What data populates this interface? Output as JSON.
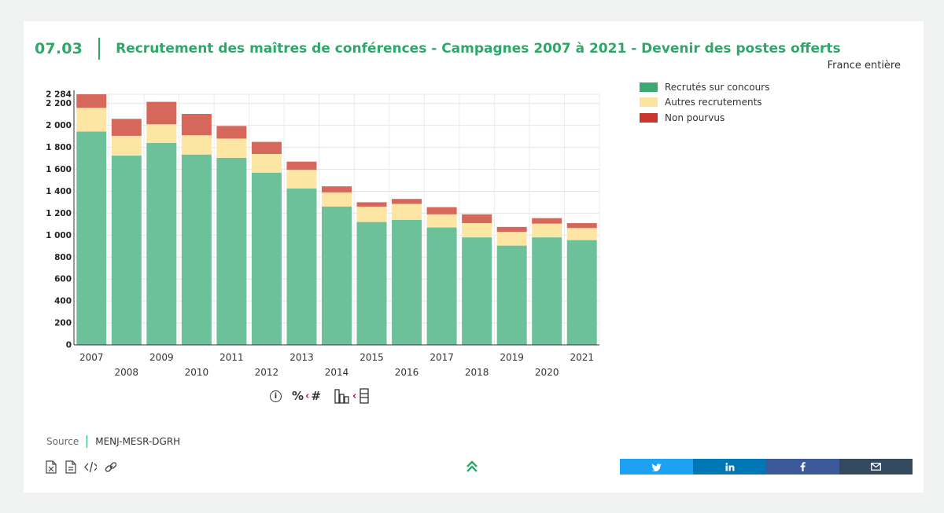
{
  "header": {
    "code": "07.03",
    "title": "Recrutement des maîtres de conférences - Campagnes 2007 à 2021 - Devenir des postes offerts",
    "scope": "France entière"
  },
  "legend": {
    "items": [
      {
        "label": "Recrutés sur concours",
        "color": "#3aaa72"
      },
      {
        "label": "Autres recrutements",
        "color": "#fbe3a0"
      },
      {
        "label": "Non pourvus",
        "color": "#c8382e"
      }
    ]
  },
  "chart_data": {
    "type": "bar",
    "stacked": true,
    "categories": [
      "2007",
      "2008",
      "2009",
      "2010",
      "2011",
      "2012",
      "2013",
      "2014",
      "2015",
      "2016",
      "2017",
      "2018",
      "2019",
      "2020",
      "2021"
    ],
    "series": [
      {
        "name": "Recrutés sur concours",
        "color": "#6cc19a",
        "values": [
          1945,
          1725,
          1840,
          1735,
          1705,
          1570,
          1425,
          1260,
          1120,
          1140,
          1070,
          980,
          905,
          980,
          955
        ]
      },
      {
        "name": "Autres recrutements",
        "color": "#fde5a3",
        "values": [
          215,
          180,
          170,
          175,
          175,
          170,
          170,
          130,
          140,
          145,
          120,
          130,
          125,
          125,
          110
        ]
      },
      {
        "name": "Non pourvus",
        "color": "#d6675b",
        "values": [
          124,
          155,
          205,
          195,
          115,
          110,
          75,
          55,
          40,
          45,
          65,
          80,
          45,
          50,
          45
        ]
      }
    ],
    "ylim": [
      0,
      2284
    ],
    "yticks": [
      0,
      200,
      400,
      600,
      800,
      1000,
      1200,
      1400,
      1600,
      1800,
      2000,
      2200,
      2284
    ],
    "ytick_labels": [
      "0",
      "200",
      "400",
      "600",
      "800",
      "1 000",
      "1 200",
      "1 400",
      "1 600",
      "1 800",
      "2 000",
      "2 200",
      "2 284"
    ],
    "grid": true,
    "legend_position": "top-right"
  },
  "controls": {
    "info_label": "i",
    "percent_label": "%",
    "count_label": "#"
  },
  "source": {
    "label": "Source",
    "value": "MENJ-MESR-DGRH"
  },
  "share": {
    "twitter_color": "#1da1f2",
    "linkedin_color": "#0077b5",
    "facebook_color": "#3b5998",
    "email_color": "#34495e"
  },
  "icons": {
    "tools": [
      "excel-file-icon",
      "document-icon",
      "code-icon",
      "link-icon"
    ],
    "up": "double-chevron-up-icon"
  }
}
